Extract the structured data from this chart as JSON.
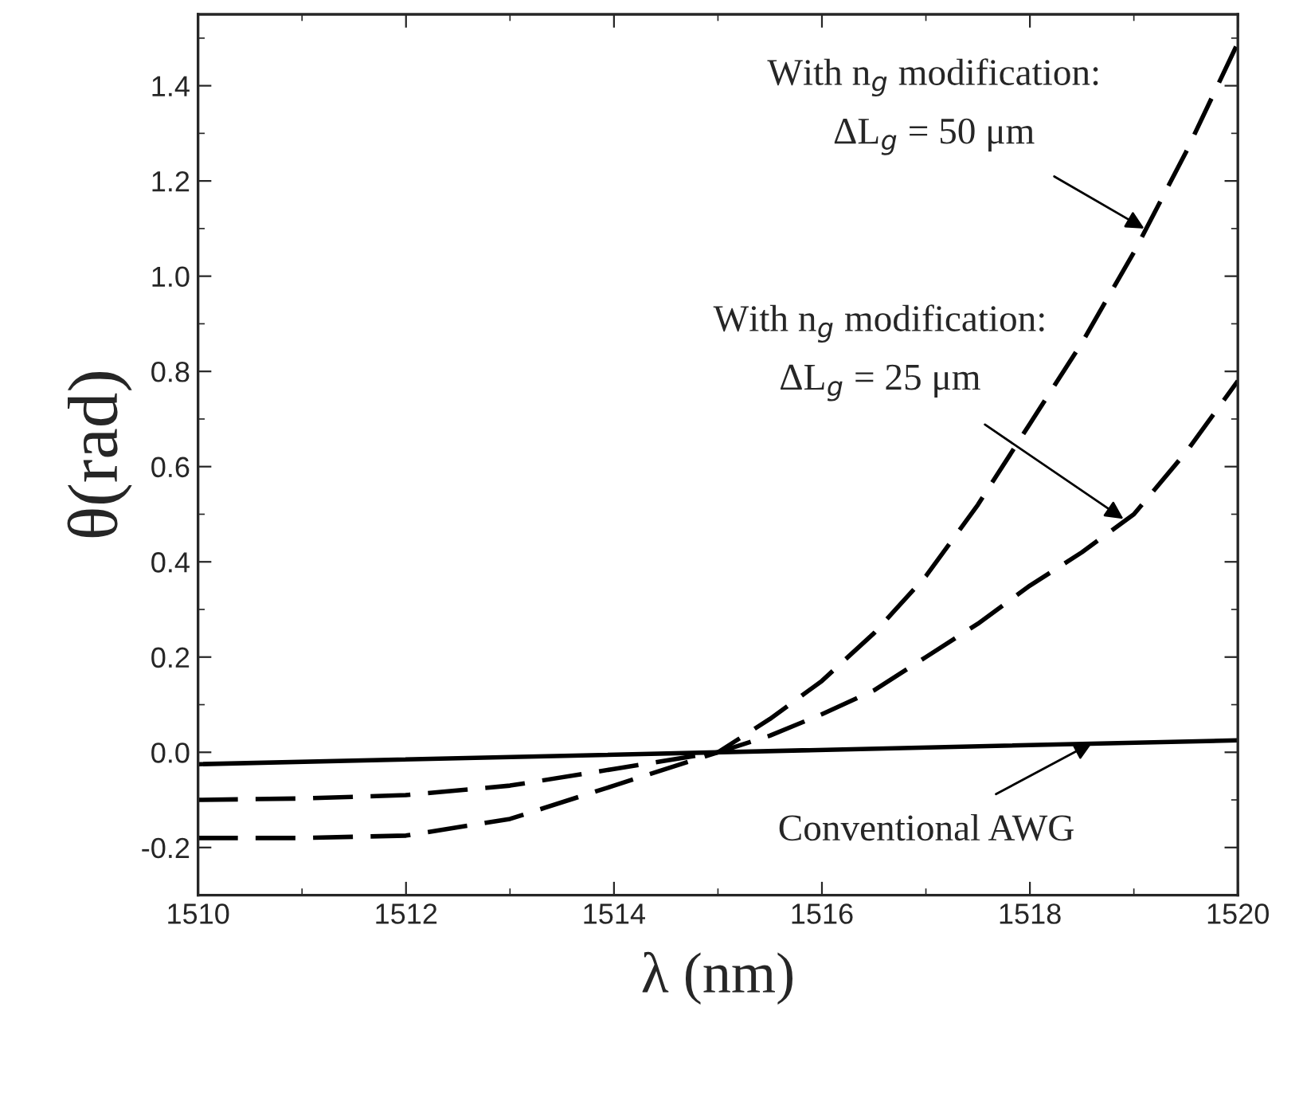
{
  "chart_data": {
    "type": "line",
    "xlabel": "λ (nm)",
    "ylabel": "θ(rad)",
    "x": [
      1510,
      1511,
      1512,
      1513,
      1514,
      1515,
      1515.5,
      1516,
      1516.5,
      1517,
      1517.5,
      1518,
      1518.5,
      1519,
      1519.5,
      1520
    ],
    "series": [
      {
        "color": "#000000",
        "line_style": "dashed",
        "values": [
          -0.18,
          -0.18,
          -0.175,
          -0.14,
          -0.07,
          0.0,
          0.07,
          0.15,
          0.25,
          0.37,
          0.52,
          0.69,
          0.86,
          1.05,
          1.26,
          1.49
        ]
      },
      {
        "color": "#000000",
        "line_style": "dashed",
        "values": [
          -0.1,
          -0.097,
          -0.09,
          -0.07,
          -0.035,
          0.0,
          0.035,
          0.08,
          0.13,
          0.2,
          0.27,
          0.35,
          0.42,
          0.5,
          0.63,
          0.78
        ]
      },
      {
        "color": "#000000",
        "line_style": "solid",
        "x": [
          1510,
          1520
        ],
        "values": [
          -0.025,
          0.025
        ]
      }
    ],
    "xlim": [
      1510,
      1520
    ],
    "xticks": [
      1510,
      1512,
      1514,
      1516,
      1518,
      1520
    ],
    "ylim": [
      -0.3,
      1.55
    ],
    "yticks": [
      -0.2,
      {
        "value": 0,
        "label": "0.0"
      },
      0.2,
      0.4,
      0.6,
      0.8,
      {
        "value": 1,
        "label": "1.0"
      },
      1.2,
      1.4
    ],
    "annotations": [
      {
        "text": "With n$_{g}$ modification:\nΔL$_{g}$ = 50 μm",
        "x": 1519.1,
        "y": 1.1
      },
      {
        "text": "With n$_{g}$ modification:\nΔL$_{g}$ = 25 μm",
        "x": 1518.9,
        "y": 0.49
      },
      {
        "text": "Conventional AWG",
        "x": 1518.6,
        "y": 0.02
      }
    ],
    "grid": false,
    "legend": false,
    "marker": "none"
  }
}
